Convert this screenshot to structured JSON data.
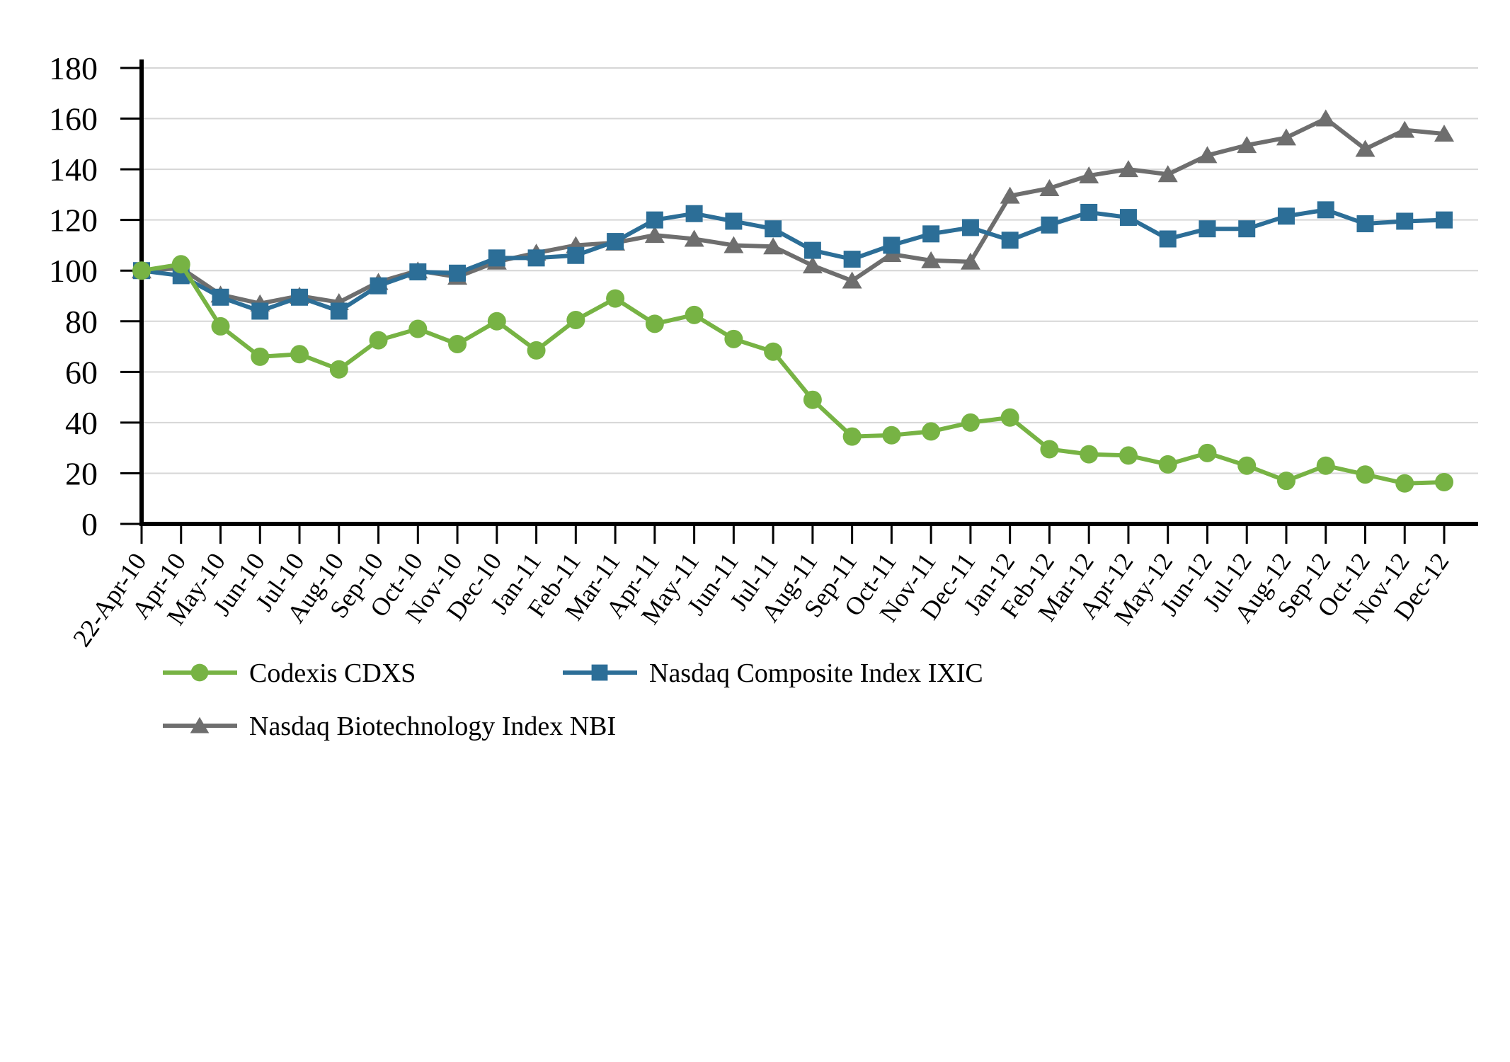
{
  "chart_data": {
    "type": "line",
    "title": "",
    "xlabel": "",
    "ylabel": "",
    "ylim": [
      0,
      180
    ],
    "ytick_step": 20,
    "y_ticks": [
      0,
      20,
      40,
      60,
      80,
      100,
      120,
      140,
      160,
      180
    ],
    "grid": true,
    "legend_position": "bottom",
    "categories": [
      "22-Apr-10",
      "Apr-10",
      "May-10",
      "Jun-10",
      "Jul-10",
      "Aug-10",
      "Sep-10",
      "Oct-10",
      "Nov-10",
      "Dec-10",
      "Jan-11",
      "Feb-11",
      "Mar-11",
      "Apr-11",
      "May-11",
      "Jun-11",
      "Jul-11",
      "Aug-11",
      "Sep-11",
      "Oct-11",
      "Nov-11",
      "Dec-11",
      "Jan-12",
      "Feb-12",
      "Mar-12",
      "Apr-12",
      "May-12",
      "Jun-12",
      "Jul-12",
      "Aug-12",
      "Sep-12",
      "Oct-12",
      "Nov-12",
      "Dec-12"
    ],
    "series": [
      {
        "name": "Codexis CDXS",
        "marker": "circle",
        "color": "#77B344",
        "values": [
          100,
          102.5,
          78,
          66,
          67,
          61,
          72.5,
          77,
          71,
          80,
          68.5,
          80.5,
          89,
          79,
          82.5,
          73,
          68,
          49,
          34.5,
          35,
          36.5,
          40,
          42,
          29.5,
          27.5,
          27,
          23.5,
          28,
          23,
          17,
          23,
          19.5,
          16,
          16.5
        ]
      },
      {
        "name": "Nasdaq Composite Index IXIC",
        "marker": "square",
        "color": "#2C6E97",
        "values": [
          100,
          98,
          89.5,
          84,
          89.5,
          84,
          94,
          99.5,
          99,
          105,
          105,
          106,
          111.5,
          120,
          122.5,
          119.5,
          116.5,
          108,
          104.5,
          110,
          114.5,
          117,
          112,
          118,
          123,
          121,
          112.5,
          116.5,
          116.5,
          121.5,
          124,
          118.5,
          119.5,
          120
        ]
      },
      {
        "name": "Nasdaq Biotechnology Index NBI",
        "marker": "triangle",
        "color": "#6E6E6E",
        "values": [
          100,
          101,
          90.5,
          87,
          90,
          87.5,
          95.5,
          100,
          97.5,
          103.5,
          107,
          110,
          111,
          114,
          112.5,
          110,
          109.5,
          102,
          96,
          106.5,
          104,
          103.5,
          129.5,
          132.5,
          137.5,
          140,
          138,
          145.5,
          149.5,
          152.5,
          160,
          148,
          155.5,
          154
        ]
      }
    ],
    "colors": {
      "axis": "#000000",
      "gridline": "#D6D6D6",
      "background": "#FFFFFF"
    },
    "legend": {
      "row1": [
        "Codexis CDXS",
        "Nasdaq Composite Index IXIC"
      ],
      "row2": [
        "Nasdaq Biotechnology Index NBI"
      ]
    }
  }
}
